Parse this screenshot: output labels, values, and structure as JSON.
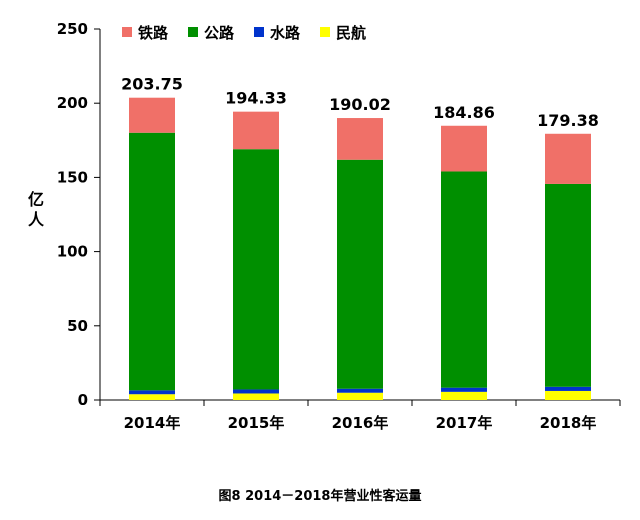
{
  "chart_data": {
    "type": "bar",
    "stacked": true,
    "title": "",
    "caption": "图8  2014－2018年营业性客运量",
    "xlabel": "",
    "ylabel": "亿人",
    "ylim": [
      0,
      250
    ],
    "yticks": [
      0,
      50,
      100,
      150,
      200,
      250
    ],
    "grid": false,
    "legend_position": "top",
    "categories": [
      "2014年",
      "2015年",
      "2016年",
      "2017年",
      "2018年"
    ],
    "series": [
      {
        "name": "民航",
        "color": "#FFFF00",
        "values": [
          3.9,
          4.4,
          4.9,
          5.5,
          6.1
        ]
      },
      {
        "name": "水路",
        "color": "#0033CC",
        "values": [
          2.6,
          2.7,
          2.7,
          2.8,
          2.8
        ]
      },
      {
        "name": "公路",
        "color": "#008F00",
        "values": [
          173.6,
          161.9,
          154.3,
          145.7,
          136.7
        ]
      },
      {
        "name": "铁路",
        "color": "#F07068",
        "values": [
          23.6,
          25.3,
          28.1,
          30.8,
          33.8
        ]
      }
    ],
    "legend_order": [
      "铁路",
      "公路",
      "水路",
      "民航"
    ],
    "totals": [
      "203.75",
      "194.33",
      "190.02",
      "184.86",
      "179.38"
    ]
  }
}
